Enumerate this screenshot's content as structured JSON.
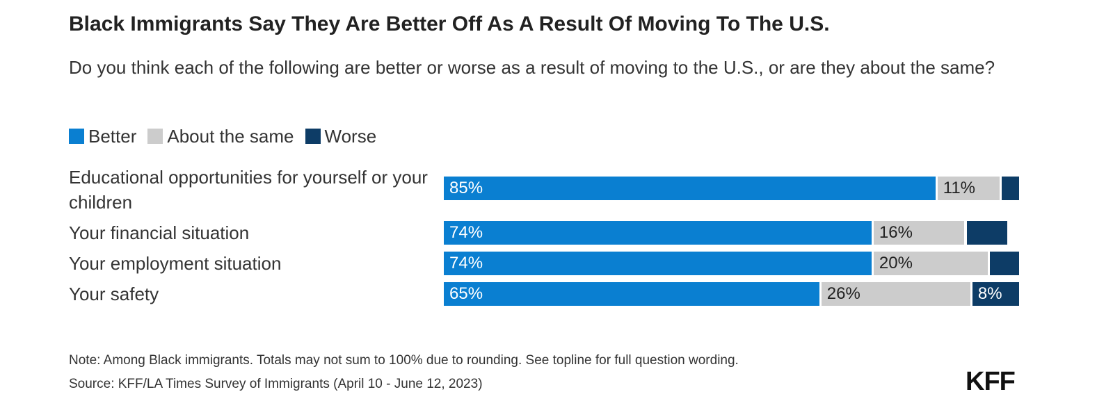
{
  "title": "Black Immigrants Say They Are Better Off As A Result Of Moving To The U.S.",
  "subtitle": "Do you think each of the following are better or worse as a result of moving to the U.S., or are they about the same?",
  "legend": [
    {
      "label": "Better",
      "color": "#0a7fd1"
    },
    {
      "label": "About the same",
      "color": "#cccccc"
    },
    {
      "label": "Worse",
      "color": "#0d3c66"
    }
  ],
  "chart_data": {
    "type": "bar",
    "orientation": "horizontal",
    "stacked": true,
    "categories": [
      "Educational opportunities for yourself or your children",
      "Your financial situation",
      "Your employment situation",
      "Your safety"
    ],
    "series": [
      {
        "name": "Better",
        "values": [
          85,
          74,
          74,
          65
        ],
        "labels": [
          "85%",
          "74%",
          "74%",
          "65%"
        ],
        "color": "#0a7fd1"
      },
      {
        "name": "About the same",
        "values": [
          11,
          16,
          20,
          26
        ],
        "labels": [
          "11%",
          "16%",
          "20%",
          "26%"
        ],
        "color": "#cccccc"
      },
      {
        "name": "Worse",
        "values": [
          3,
          7,
          5,
          8
        ],
        "labels": [
          "",
          "",
          "",
          "8%"
        ],
        "color": "#0d3c66"
      }
    ],
    "xlim": [
      0,
      100
    ],
    "grid": false,
    "legend_position": "top-left"
  },
  "note": "Note: Among Black immigrants. Totals may not sum to 100% due to rounding. See topline for full question wording.",
  "source": "Source: KFF/LA Times Survey of Immigrants (April 10 - June 12, 2023)",
  "logo": "KFF"
}
